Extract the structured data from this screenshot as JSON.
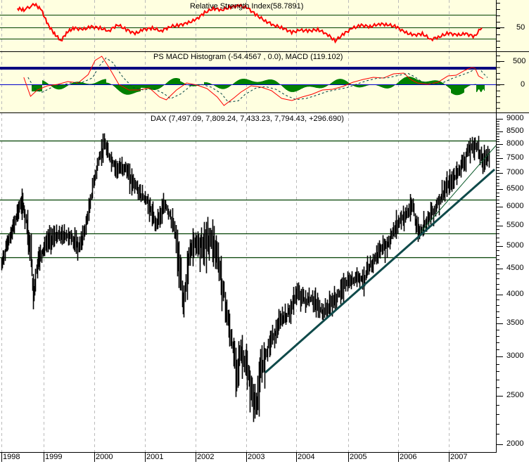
{
  "chart_data": [
    {
      "type": "line",
      "title": "Relative Strength Index",
      "title_value": "(58.7891)",
      "panel": "rsi",
      "ylabel": "",
      "y_tick_labels": [
        "50"
      ],
      "reference_lines": [
        70,
        50,
        30
      ],
      "last_value": 58.7891,
      "line_color": "#FF0000",
      "reference_line_color": "#006400",
      "background": "#FFFFE0",
      "points": [
        [
          40,
          12
        ],
        [
          55,
          14
        ],
        [
          80,
          6
        ],
        [
          95,
          14
        ],
        [
          110,
          35
        ],
        [
          125,
          48
        ],
        [
          140,
          58
        ],
        [
          155,
          45
        ],
        [
          170,
          40
        ],
        [
          190,
          42
        ],
        [
          210,
          38
        ],
        [
          230,
          40
        ],
        [
          250,
          44
        ],
        [
          270,
          35
        ],
        [
          290,
          42
        ],
        [
          310,
          48
        ],
        [
          330,
          42
        ],
        [
          350,
          40
        ],
        [
          370,
          44
        ],
        [
          390,
          38
        ],
        [
          410,
          36
        ],
        [
          430,
          33
        ],
        [
          450,
          28
        ],
        [
          470,
          18
        ],
        [
          490,
          12
        ],
        [
          510,
          14
        ],
        [
          530,
          10
        ],
        [
          550,
          8
        ],
        [
          570,
          12
        ],
        [
          590,
          22
        ],
        [
          610,
          30
        ],
        [
          630,
          36
        ],
        [
          650,
          40
        ],
        [
          670,
          46
        ],
        [
          690,
          43
        ],
        [
          710,
          44
        ],
        [
          730,
          42
        ],
        [
          750,
          48
        ],
        [
          770,
          58
        ],
        [
          790,
          48
        ],
        [
          810,
          40
        ],
        [
          830,
          36
        ],
        [
          850,
          38
        ],
        [
          870,
          34
        ],
        [
          890,
          35
        ],
        [
          910,
          38
        ],
        [
          930,
          46
        ],
        [
          950,
          50
        ],
        [
          970,
          48
        ],
        [
          990,
          56
        ],
        [
          1010,
          52
        ],
        [
          1030,
          47
        ],
        [
          1050,
          50
        ],
        [
          1070,
          48
        ],
        [
          1090,
          52
        ],
        [
          1110,
          36
        ]
      ]
    },
    {
      "type": "line",
      "title": "PS MACD Histogram",
      "title_value": "(-54.4567 , 0.0), MACD (119.102)",
      "panel": "macd",
      "y_tick_labels": [
        "500",
        "0"
      ],
      "histogram_last": -54.4567,
      "signal_last": 0.0,
      "macd_last": 119.102,
      "macd_line_color": "#FF0000",
      "signal_line_color": "#004040",
      "histogram_color": "#008000",
      "zero_line_color": "#0000CC",
      "upper_line_color": "#000080"
    },
    {
      "type": "bar",
      "title": "DAX",
      "title_value": "(7,497.09, 7,809.24, 7,433.23, 7,794.43, +296.690)",
      "panel": "price",
      "last_bar": {
        "open": 7497.09,
        "high": 7809.24,
        "low": 7433.23,
        "close": 7794.43,
        "change": 296.69
      },
      "yscale": "log",
      "ylim": [
        2000,
        9000
      ],
      "y_tick_labels": [
        "9000",
        "8500",
        "8000",
        "7500",
        "7000",
        "6500",
        "6000",
        "5500",
        "5000",
        "4500",
        "4000",
        "3500",
        "3000",
        "2500",
        "2000"
      ],
      "x_tick_labels": [
        "1998",
        "1999",
        "2000",
        "2001",
        "2002",
        "2003",
        "2004",
        "2005",
        "2006",
        "2007"
      ],
      "horizontal_lines": [
        8150,
        6200,
        5300,
        4750
      ],
      "trendlines": [
        {
          "from": [
            "2003-03",
            2750
          ],
          "to": [
            "2007-07",
            7100
          ],
          "style": "thick"
        },
        {
          "from": [
            "2006-06",
            5350
          ],
          "to": [
            "2007-07",
            7950
          ],
          "style": "thin"
        }
      ],
      "price_path": [
        [
          1998.0,
          4600
        ],
        [
          1998.1,
          5000
        ],
        [
          1998.25,
          5400
        ],
        [
          1998.4,
          6000
        ],
        [
          1998.5,
          6150
        ],
        [
          1998.6,
          5600
        ],
        [
          1998.7,
          4800
        ],
        [
          1998.75,
          4000
        ],
        [
          1998.85,
          4700
        ],
        [
          1999.0,
          5000
        ],
        [
          1999.1,
          5200
        ],
        [
          1999.3,
          5300
        ],
        [
          1999.5,
          5300
        ],
        [
          1999.7,
          5000
        ],
        [
          1999.8,
          5400
        ],
        [
          1999.9,
          6000
        ],
        [
          2000.0,
          6900
        ],
        [
          2000.1,
          7600
        ],
        [
          2000.2,
          8050
        ],
        [
          2000.3,
          7600
        ],
        [
          2000.4,
          7300
        ],
        [
          2000.5,
          7200
        ],
        [
          2000.6,
          7300
        ],
        [
          2000.7,
          6900
        ],
        [
          2000.8,
          6700
        ],
        [
          2000.9,
          6400
        ],
        [
          2001.0,
          6300
        ],
        [
          2001.1,
          6000
        ],
        [
          2001.2,
          5600
        ],
        [
          2001.4,
          6100
        ],
        [
          2001.5,
          5800
        ],
        [
          2001.6,
          5300
        ],
        [
          2001.7,
          4400
        ],
        [
          2001.75,
          3900
        ],
        [
          2001.9,
          5000
        ],
        [
          2002.0,
          5200
        ],
        [
          2002.15,
          5100
        ],
        [
          2002.3,
          5300
        ],
        [
          2002.4,
          5000
        ],
        [
          2002.5,
          4400
        ],
        [
          2002.6,
          3800
        ],
        [
          2002.7,
          3300
        ],
        [
          2002.8,
          2900
        ],
        [
          2002.9,
          3100
        ],
        [
          2003.0,
          2900
        ],
        [
          2003.1,
          2600
        ],
        [
          2003.2,
          2400
        ],
        [
          2003.3,
          2900
        ],
        [
          2003.4,
          3100
        ],
        [
          2003.5,
          3300
        ],
        [
          2003.6,
          3400
        ],
        [
          2003.7,
          3600
        ],
        [
          2003.8,
          3650
        ],
        [
          2003.9,
          3800
        ],
        [
          2004.0,
          4050
        ],
        [
          2004.1,
          4000
        ],
        [
          2004.2,
          3900
        ],
        [
          2004.3,
          3950
        ],
        [
          2004.4,
          3850
        ],
        [
          2004.5,
          3700
        ],
        [
          2004.6,
          3800
        ],
        [
          2004.7,
          3900
        ],
        [
          2004.8,
          4000
        ],
        [
          2004.9,
          4200
        ],
        [
          2005.0,
          4250
        ],
        [
          2005.2,
          4400
        ],
        [
          2005.3,
          4300
        ],
        [
          2005.4,
          4550
        ],
        [
          2005.5,
          4700
        ],
        [
          2005.6,
          4900
        ],
        [
          2005.7,
          5000
        ],
        [
          2005.8,
          5100
        ],
        [
          2005.9,
          5400
        ],
        [
          2006.0,
          5650
        ],
        [
          2006.2,
          5900
        ],
        [
          2006.3,
          6100
        ],
        [
          2006.35,
          5500
        ],
        [
          2006.45,
          5400
        ],
        [
          2006.55,
          5700
        ],
        [
          2006.7,
          5950
        ],
        [
          2006.8,
          6200
        ],
        [
          2006.9,
          6500
        ],
        [
          2007.0,
          6700
        ],
        [
          2007.1,
          6900
        ],
        [
          2007.2,
          7200
        ],
        [
          2007.3,
          7500
        ],
        [
          2007.4,
          7900
        ],
        [
          2007.5,
          8000
        ],
        [
          2007.55,
          8050
        ],
        [
          2007.65,
          7500
        ],
        [
          2007.75,
          7600
        ],
        [
          2007.8,
          7800
        ]
      ]
    }
  ],
  "colors": {
    "indicator_bg": "#FFFFE0",
    "price_bg": "#FFFFFF",
    "grid_dash": "#BBBBBB",
    "hline": "#004000",
    "trend": "#0F4A4A",
    "bars": "#000000"
  }
}
